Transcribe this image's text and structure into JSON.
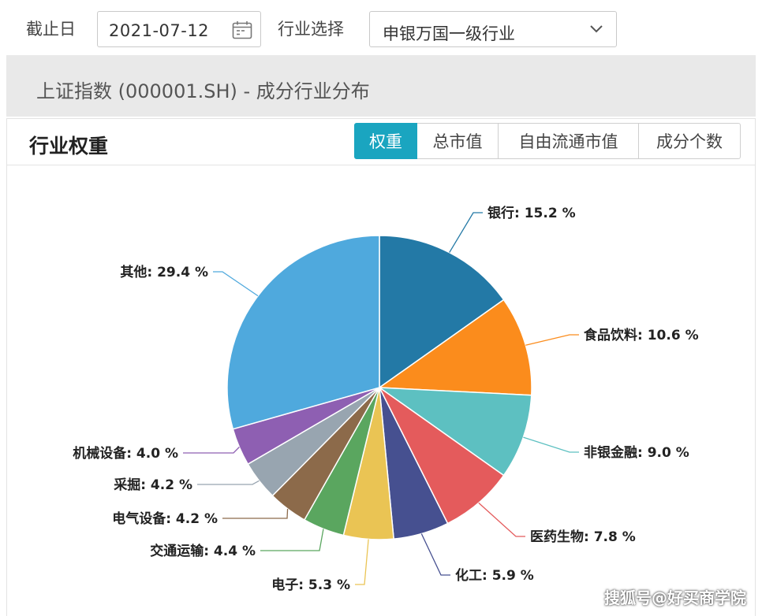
{
  "filters": {
    "date_label": "截止日",
    "date_value": "2021-07-12",
    "industry_label": "行业选择",
    "industry_value": "申银万国一级行业"
  },
  "title": "上证指数 (000001.SH) - 成分行业分布",
  "panel": {
    "heading": "行业权重",
    "tabs": [
      {
        "label": "权重",
        "active": true
      },
      {
        "label": "总市值",
        "active": false
      },
      {
        "label": "自由流通市值",
        "active": false
      },
      {
        "label": "成分个数",
        "active": false
      }
    ]
  },
  "chart_data": {
    "type": "pie",
    "unit": "%",
    "slices": [
      {
        "name": "银行",
        "value": 15.2,
        "color": "#2379a6"
      },
      {
        "name": "食品饮料",
        "value": 10.6,
        "color": "#fb8c1c"
      },
      {
        "name": "非银金融",
        "value": 9.0,
        "color": "#5dc0c1"
      },
      {
        "name": "医药生物",
        "value": 7.8,
        "color": "#e45b5c"
      },
      {
        "name": "化工",
        "value": 5.9,
        "color": "#465090"
      },
      {
        "name": "电子",
        "value": 5.3,
        "color": "#eac454"
      },
      {
        "name": "交通运输",
        "value": 4.4,
        "color": "#5aa65f"
      },
      {
        "name": "电气设备",
        "value": 4.2,
        "color": "#8c6a4a"
      },
      {
        "name": "采掘",
        "value": 4.2,
        "color": "#98a5b0"
      },
      {
        "name": "机械设备",
        "value": 4.0,
        "color": "#8e5fb2"
      },
      {
        "name": "其他",
        "value": 29.4,
        "color": "#4fa9dd"
      }
    ]
  },
  "watermark": "搜狐号@好买商学院"
}
